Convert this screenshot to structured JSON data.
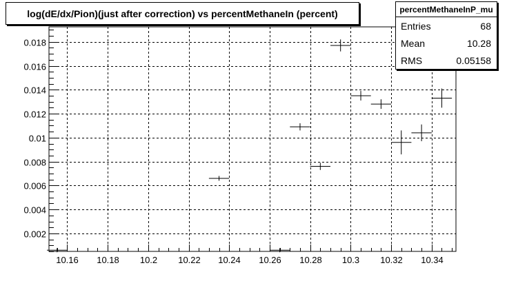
{
  "chart_data": {
    "type": "scatter",
    "title": "log(dE/dx/Pion)(just after correction) vs percentMethaneIn (percent)",
    "xlabel": "",
    "ylabel": "",
    "xlim": [
      10.151,
      10.352
    ],
    "ylim": [
      0.0005,
      0.01925
    ],
    "x_ticks": [
      10.16,
      10.18,
      10.2,
      10.22,
      10.24,
      10.26,
      10.28,
      10.3,
      10.32,
      10.34
    ],
    "x_tick_labels": [
      "10.16",
      "10.18",
      "10.2",
      "10.22",
      "10.24",
      "10.26",
      "10.28",
      "10.3",
      "10.32",
      "10.34"
    ],
    "y_ticks": [
      0.002,
      0.004,
      0.006,
      0.008,
      0.01,
      0.012,
      0.014,
      0.016,
      0.018
    ],
    "y_tick_labels": [
      "0.002",
      "0.004",
      "0.006",
      "0.008",
      "0.01",
      "0.012",
      "0.014",
      "0.016",
      "0.018"
    ],
    "grid": true,
    "points": [
      {
        "x": 10.155,
        "xerr": 0.005,
        "y": 0.0006,
        "yerr": 0.0
      },
      {
        "x": 10.235,
        "xerr": 0.005,
        "y": 0.0066,
        "yerr": 0.0002
      },
      {
        "x": 10.265,
        "xerr": 0.005,
        "y": 0.0006,
        "yerr": 0.0
      },
      {
        "x": 10.275,
        "xerr": 0.005,
        "y": 0.0109,
        "yerr": 0.0003
      },
      {
        "x": 10.285,
        "xerr": 0.005,
        "y": 0.0076,
        "yerr": 0.0003
      },
      {
        "x": 10.295,
        "xerr": 0.005,
        "y": 0.0177,
        "yerr": 0.0005
      },
      {
        "x": 10.305,
        "xerr": 0.005,
        "y": 0.0135,
        "yerr": 0.0004
      },
      {
        "x": 10.315,
        "xerr": 0.005,
        "y": 0.0128,
        "yerr": 0.0004
      },
      {
        "x": 10.325,
        "xerr": 0.005,
        "y": 0.0096,
        "yerr": 0.001
      },
      {
        "x": 10.335,
        "xerr": 0.005,
        "y": 0.0104,
        "yerr": 0.0007
      },
      {
        "x": 10.345,
        "xerr": 0.005,
        "y": 0.0133,
        "yerr": 0.0008
      }
    ]
  },
  "stats": {
    "name": "percentMethaneInP_mu",
    "rows": [
      {
        "label": "Entries",
        "value": "68"
      },
      {
        "label": "Mean",
        "value": "10.28"
      },
      {
        "label": "RMS",
        "value": "0.05158"
      }
    ]
  }
}
